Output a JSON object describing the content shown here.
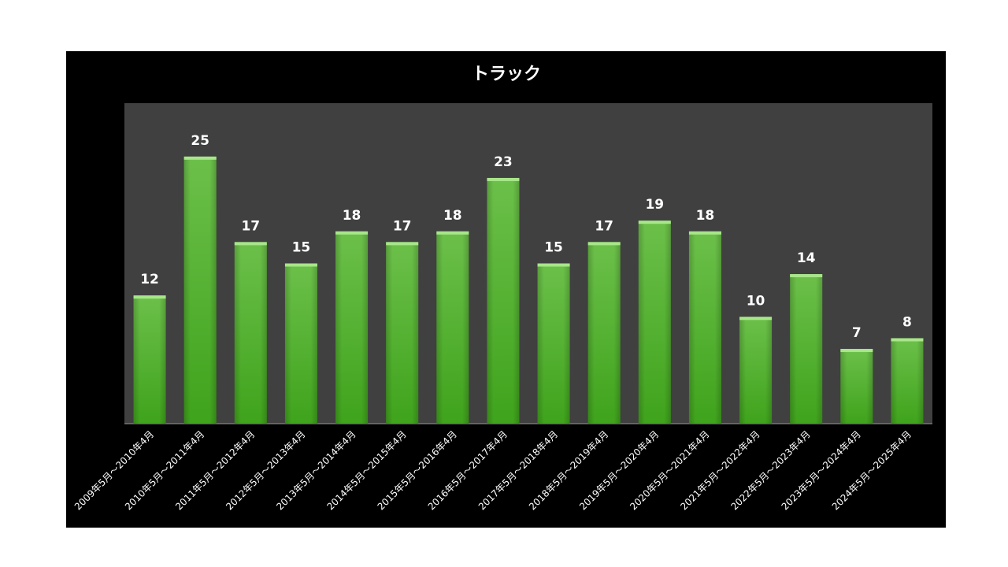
{
  "chart_data": {
    "type": "bar",
    "title": "トラック",
    "categories": [
      "2009年5月～2010年4月",
      "2010年5月～2011年4月",
      "2011年5月～2012年4月",
      "2012年5月～2013年4月",
      "2013年5月～2014年4月",
      "2014年5月～2015年4月",
      "2015年5月～2016年4月",
      "2016年5月～2017年4月",
      "2017年5月～2018年4月",
      "2018年5月～2019年4月",
      "2019年5月～2020年4月",
      "2020年5月～2021年4月",
      "2021年5月～2022年4月",
      "2022年5月～2023年4月",
      "2023年5月～2024年4月",
      "2024年5月～2025年4月"
    ],
    "values": [
      12,
      25,
      17,
      15,
      18,
      17,
      18,
      23,
      15,
      17,
      19,
      18,
      10,
      14,
      7,
      8
    ],
    "ylim": [
      0,
      30
    ],
    "grid": false,
    "legend": "none",
    "colors": {
      "panel_bg": "#000000",
      "plot_bg": "#404040",
      "bar_top": "#6cc04a",
      "bar_bottom": "#3fa31c",
      "bar_cap": "#a8e68a"
    }
  }
}
